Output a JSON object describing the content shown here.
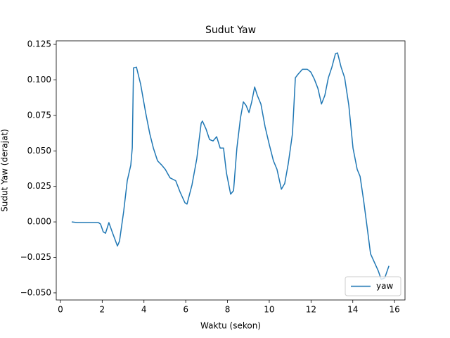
{
  "chart_data": {
    "type": "line",
    "title": "Sudut Yaw",
    "x_label": "Waktu (sekon)",
    "y_label": "Sudut Yaw (derajat)",
    "x": [
      0.54,
      0.81,
      1.15,
      1.48,
      1.82,
      1.92,
      2.05,
      2.16,
      2.32,
      2.49,
      2.73,
      2.83,
      3.03,
      3.2,
      3.37,
      3.44,
      3.5,
      3.64,
      3.84,
      4.08,
      4.28,
      4.45,
      4.65,
      4.85,
      5.02,
      5.25,
      5.52,
      5.73,
      5.96,
      6.06,
      6.3,
      6.53,
      6.74,
      6.8,
      6.97,
      7.14,
      7.31,
      7.48,
      7.65,
      7.81,
      7.95,
      8.15,
      8.29,
      8.45,
      8.62,
      8.76,
      8.89,
      9.03,
      9.16,
      9.3,
      9.43,
      9.6,
      9.8,
      10.0,
      10.2,
      10.37,
      10.58,
      10.74,
      10.91,
      11.11,
      11.25,
      11.38,
      11.59,
      11.82,
      11.99,
      12.16,
      12.33,
      12.5,
      12.66,
      12.83,
      13.0,
      13.17,
      13.27,
      13.44,
      13.61,
      13.81,
      14.01,
      14.21,
      14.35,
      14.52,
      14.72,
      14.85,
      15.02,
      15.22,
      15.36,
      15.53,
      15.73
    ],
    "series": [
      {
        "name": "yaw",
        "color": "#1f77b4",
        "values": [
          0,
          -0.0005,
          -0.0005,
          -0.0005,
          -0.0005,
          -0.0015,
          -0.007,
          -0.008,
          -0.0005,
          -0.0075,
          -0.017,
          -0.0135,
          0.0075,
          0.029,
          0.04,
          0.052,
          0.1085,
          0.109,
          0.097,
          0.077,
          0.062,
          0.052,
          0.043,
          0.04,
          0.037,
          0.031,
          0.029,
          0.021,
          0.0135,
          0.0125,
          0.026,
          0.0445,
          0.0695,
          0.071,
          0.0655,
          0.058,
          0.057,
          0.06,
          0.052,
          0.052,
          0.0345,
          0.0195,
          0.022,
          0.052,
          0.073,
          0.0845,
          0.082,
          0.077,
          0.0845,
          0.095,
          0.089,
          0.083,
          0.067,
          0.0545,
          0.043,
          0.037,
          0.023,
          0.027,
          0.041,
          0.062,
          0.1015,
          0.104,
          0.1075,
          0.1075,
          0.1055,
          0.1005,
          0.094,
          0.083,
          0.089,
          0.1015,
          0.109,
          0.1185,
          0.119,
          0.109,
          0.1015,
          0.082,
          0.052,
          0.037,
          0.032,
          0.015,
          -0.0075,
          -0.0225,
          -0.028,
          -0.0345,
          -0.0405,
          -0.0395,
          -0.031
        ]
      }
    ],
    "xlim": [
      -0.2,
      16.5
    ],
    "xticks": [
      0,
      2,
      4,
      6,
      8,
      10,
      12,
      14,
      16
    ],
    "ylim": [
      -0.055,
      0.1275
    ],
    "yticks": [
      {
        "value": -0.05,
        "label": "−0.050"
      },
      {
        "value": -0.025,
        "label": "−0.025"
      },
      {
        "value": 0,
        "label": "0.000"
      },
      {
        "value": 0.025,
        "label": "0.025"
      },
      {
        "value": 0.05,
        "label": "0.050"
      },
      {
        "value": 0.075,
        "label": "0.075"
      },
      {
        "value": 0.1,
        "label": "0.100"
      },
      {
        "value": 0.125,
        "label": "0.125"
      }
    ],
    "legend": "lower right",
    "grid": false
  }
}
